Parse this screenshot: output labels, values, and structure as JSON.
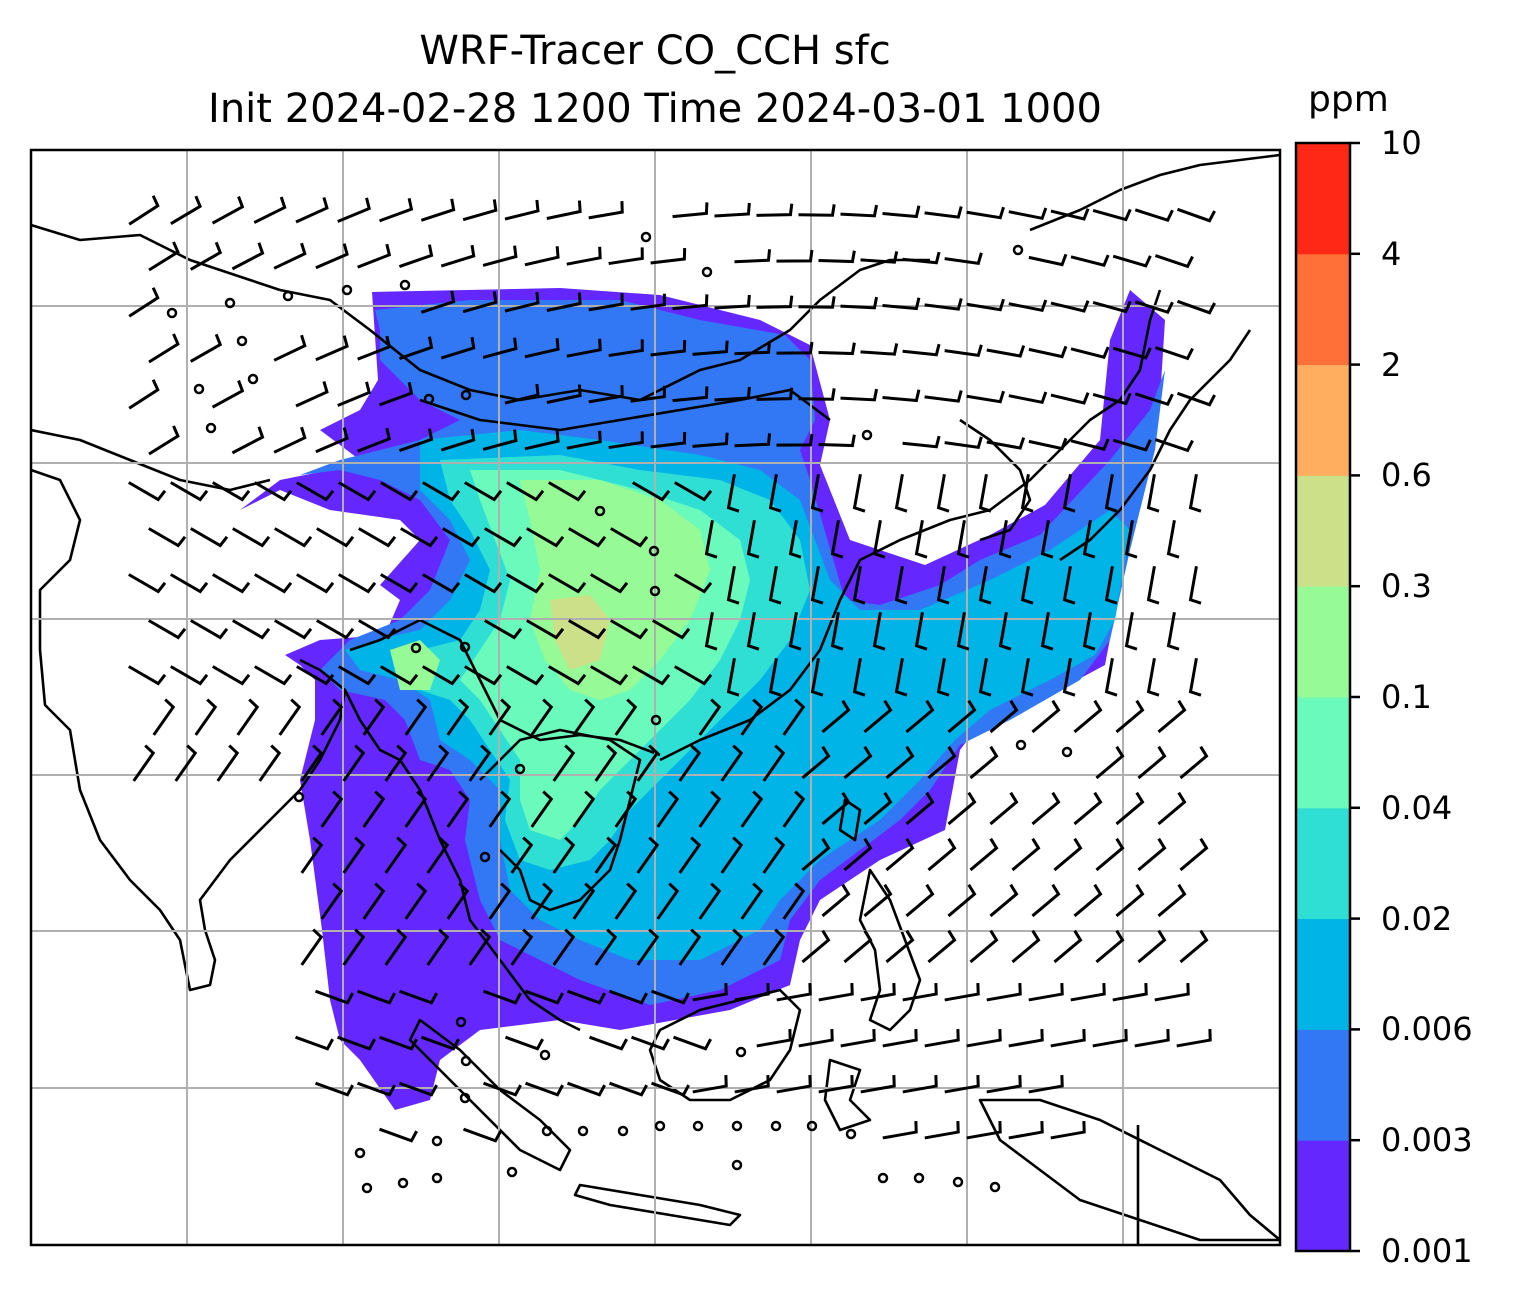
{
  "title": {
    "line1": "WRF-Tracer CO_CCH sfc",
    "line2": "Init 2024-02-28 1200 Time 2024-03-01 1000"
  },
  "colorbar": {
    "unit": "ppm",
    "ticks": [
      "0.001",
      "0.003",
      "0.006",
      "0.02",
      "0.04",
      "0.1",
      "0.3",
      "0.6",
      "2",
      "4",
      "10"
    ],
    "colors": [
      "#6428ff",
      "#3278f4",
      "#00b4e8",
      "#30dfd4",
      "#6afbbc",
      "#96fa96",
      "#cce08a",
      "#ffae60",
      "#ff7038",
      "#ff2816"
    ]
  },
  "map": {
    "grid": "on",
    "coastline_color": "#000000",
    "wind_barbs": "on",
    "plume_levels": [
      "0.001",
      "0.003",
      "0.006",
      "0.02",
      "0.04",
      "0.1",
      "0.3"
    ]
  }
}
